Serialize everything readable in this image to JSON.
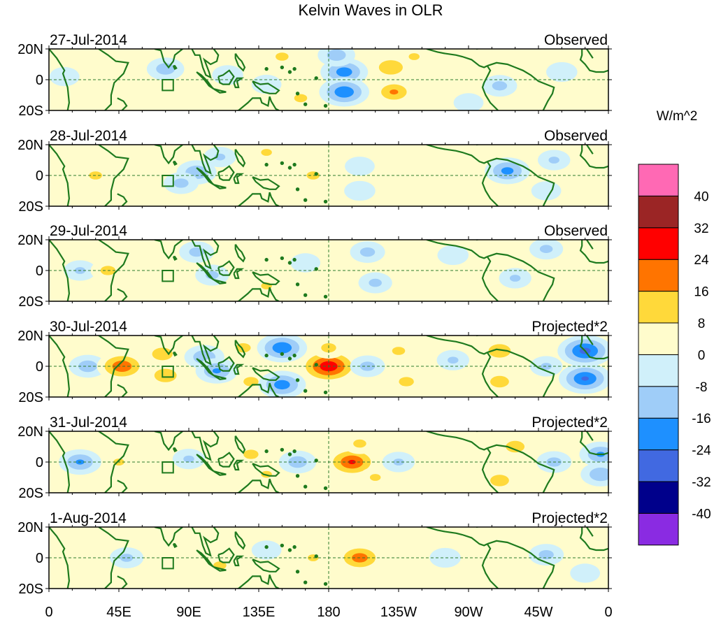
{
  "title": "Kelvin Waves in OLR",
  "colorbar": {
    "units": "W/m^2",
    "colors": [
      "#8a2be2",
      "#00008b",
      "#4169e1",
      "#1e90ff",
      "#9fcdf8",
      "#d0f0fa",
      "#fffccc",
      "#ffd93a",
      "#ff7400",
      "#ff0000",
      "#9b2525",
      "#ff69b4"
    ],
    "tick_labels": [
      "-40",
      "-32",
      "-24",
      "-16",
      "-8",
      "0",
      "8",
      "16",
      "24",
      "32",
      "40"
    ]
  },
  "chart_data": {
    "type": "heatmap",
    "title": "Kelvin Waves in OLR",
    "units": "W/m^2",
    "levels": [
      -40,
      -32,
      -24,
      -16,
      -8,
      0,
      8,
      16,
      24,
      32,
      40
    ],
    "x_ticks": [
      "0",
      "45E",
      "90E",
      "135E",
      "180",
      "135W",
      "90W",
      "45W",
      "0"
    ],
    "x_tick_values": [
      0,
      45,
      90,
      135,
      180,
      225,
      270,
      315,
      360
    ],
    "y_ticks": [
      "20N",
      "0",
      "20S"
    ],
    "y_tick_values": [
      20,
      0,
      -20
    ],
    "xlim": [
      0,
      360
    ],
    "ylim": [
      -20,
      20
    ],
    "reference_lines": [
      "equator (0)",
      "180"
    ],
    "highlight_box": {
      "lon": [
        73,
        80
      ],
      "lat": [
        -7,
        0
      ]
    },
    "panels": [
      {
        "date": "27-Jul-2014",
        "label": "Observed",
        "anomalies": [
          {
            "lon": 40,
            "lat": 8,
            "v": 5
          },
          {
            "lon": 40,
            "lat": -5,
            "v": 4
          },
          {
            "lon": 75,
            "lat": 7,
            "v": -12
          },
          {
            "lon": 115,
            "lat": 3,
            "v": -7
          },
          {
            "lon": 140,
            "lat": -3,
            "v": -6
          },
          {
            "lon": 150,
            "lat": 15,
            "v": 9
          },
          {
            "lon": 162,
            "lat": -12,
            "v": 9
          },
          {
            "lon": 190,
            "lat": 5,
            "v": -20
          },
          {
            "lon": 190,
            "lat": -8,
            "v": -22
          },
          {
            "lon": 185,
            "lat": 16,
            "v": -12
          },
          {
            "lon": 220,
            "lat": 8,
            "v": 15
          },
          {
            "lon": 222,
            "lat": -8,
            "v": 16
          },
          {
            "lon": 235,
            "lat": 15,
            "v": 8
          },
          {
            "lon": 258,
            "lat": 8,
            "v": 5
          },
          {
            "lon": 290,
            "lat": -4,
            "v": -10
          },
          {
            "lon": 270,
            "lat": -15,
            "v": -6
          },
          {
            "lon": 330,
            "lat": 5,
            "v": -7
          },
          {
            "lon": 10,
            "lat": 2,
            "v": -6
          }
        ]
      },
      {
        "date": "28-Jul-2014",
        "label": "Observed",
        "anomalies": [
          {
            "lon": 30,
            "lat": 0,
            "v": 9
          },
          {
            "lon": 95,
            "lat": 2,
            "v": -14
          },
          {
            "lon": 85,
            "lat": -5,
            "v": -10
          },
          {
            "lon": 110,
            "lat": 12,
            "v": -8
          },
          {
            "lon": 140,
            "lat": 15,
            "v": 8
          },
          {
            "lon": 170,
            "lat": 0,
            "v": 9
          },
          {
            "lon": 200,
            "lat": 6,
            "v": -6
          },
          {
            "lon": 200,
            "lat": -10,
            "v": -7
          },
          {
            "lon": 230,
            "lat": -5,
            "v": 6
          },
          {
            "lon": 295,
            "lat": 3,
            "v": -18
          },
          {
            "lon": 325,
            "lat": 10,
            "v": -8
          },
          {
            "lon": 320,
            "lat": -10,
            "v": -6
          },
          {
            "lon": 55,
            "lat": -8,
            "v": 5
          }
        ]
      },
      {
        "date": "29-Jul-2014",
        "label": "Observed",
        "anomalies": [
          {
            "lon": 20,
            "lat": 0,
            "v": -8
          },
          {
            "lon": 38,
            "lat": 0,
            "v": 10
          },
          {
            "lon": 95,
            "lat": 12,
            "v": -10
          },
          {
            "lon": 105,
            "lat": -3,
            "v": -9
          },
          {
            "lon": 140,
            "lat": -10,
            "v": 8
          },
          {
            "lon": 165,
            "lat": 5,
            "v": -6
          },
          {
            "lon": 205,
            "lat": 12,
            "v": -10
          },
          {
            "lon": 210,
            "lat": -8,
            "v": -9
          },
          {
            "lon": 260,
            "lat": 10,
            "v": -7
          },
          {
            "lon": 300,
            "lat": -5,
            "v": -8
          },
          {
            "lon": 320,
            "lat": 14,
            "v": -9
          },
          {
            "lon": 60,
            "lat": -12,
            "v": 5
          }
        ]
      },
      {
        "date": "30-Jul-2014",
        "label": "Projected*2",
        "anomalies": [
          {
            "lon": 25,
            "lat": 0,
            "v": -12
          },
          {
            "lon": 47,
            "lat": 0,
            "v": 22
          },
          {
            "lon": 73,
            "lat": 8,
            "v": 13
          },
          {
            "lon": 75,
            "lat": -6,
            "v": 14
          },
          {
            "lon": 100,
            "lat": 6,
            "v": -14
          },
          {
            "lon": 108,
            "lat": -3,
            "v": -16
          },
          {
            "lon": 125,
            "lat": 12,
            "v": 10
          },
          {
            "lon": 130,
            "lat": -10,
            "v": 10
          },
          {
            "lon": 150,
            "lat": 12,
            "v": -22
          },
          {
            "lon": 150,
            "lat": -12,
            "v": -20
          },
          {
            "lon": 180,
            "lat": 0,
            "v": 30
          },
          {
            "lon": 180,
            "lat": 12,
            "v": 10
          },
          {
            "lon": 205,
            "lat": 0,
            "v": -10
          },
          {
            "lon": 225,
            "lat": 10,
            "v": 9
          },
          {
            "lon": 230,
            "lat": -10,
            "v": 10
          },
          {
            "lon": 260,
            "lat": 4,
            "v": -8
          },
          {
            "lon": 290,
            "lat": 10,
            "v": 14
          },
          {
            "lon": 290,
            "lat": -10,
            "v": 12
          },
          {
            "lon": 345,
            "lat": 10,
            "v": -26
          },
          {
            "lon": 345,
            "lat": -8,
            "v": -24
          },
          {
            "lon": 320,
            "lat": 0,
            "v": -8
          }
        ]
      },
      {
        "date": "31-Jul-2014",
        "label": "Projected*2",
        "anomalies": [
          {
            "lon": 20,
            "lat": 0,
            "v": -16
          },
          {
            "lon": 45,
            "lat": 0,
            "v": 8
          },
          {
            "lon": 90,
            "lat": 2,
            "v": -8
          },
          {
            "lon": 130,
            "lat": 5,
            "v": 10
          },
          {
            "lon": 140,
            "lat": -8,
            "v": 8
          },
          {
            "lon": 160,
            "lat": 0,
            "v": -12
          },
          {
            "lon": 195,
            "lat": 0,
            "v": 24
          },
          {
            "lon": 200,
            "lat": 12,
            "v": 9
          },
          {
            "lon": 210,
            "lat": -10,
            "v": 8
          },
          {
            "lon": 225,
            "lat": 0,
            "v": -8
          },
          {
            "lon": 300,
            "lat": 10,
            "v": 12
          },
          {
            "lon": 290,
            "lat": -12,
            "v": 12
          },
          {
            "lon": 325,
            "lat": 0,
            "v": -10
          },
          {
            "lon": 355,
            "lat": 5,
            "v": -16
          },
          {
            "lon": 355,
            "lat": -8,
            "v": -14
          }
        ]
      },
      {
        "date": "1-Aug-2014",
        "label": "Projected*2",
        "anomalies": [
          {
            "lon": 50,
            "lat": 0,
            "v": -9
          },
          {
            "lon": 90,
            "lat": 2,
            "v": 6
          },
          {
            "lon": 110,
            "lat": -5,
            "v": 9
          },
          {
            "lon": 140,
            "lat": 5,
            "v": -6
          },
          {
            "lon": 170,
            "lat": 0,
            "v": 8
          },
          {
            "lon": 200,
            "lat": 0,
            "v": 20
          },
          {
            "lon": 220,
            "lat": 10,
            "v": 6
          },
          {
            "lon": 255,
            "lat": 0,
            "v": -7
          },
          {
            "lon": 285,
            "lat": 5,
            "v": 7
          },
          {
            "lon": 320,
            "lat": 2,
            "v": -10
          },
          {
            "lon": 345,
            "lat": -10,
            "v": -6
          }
        ]
      }
    ]
  }
}
